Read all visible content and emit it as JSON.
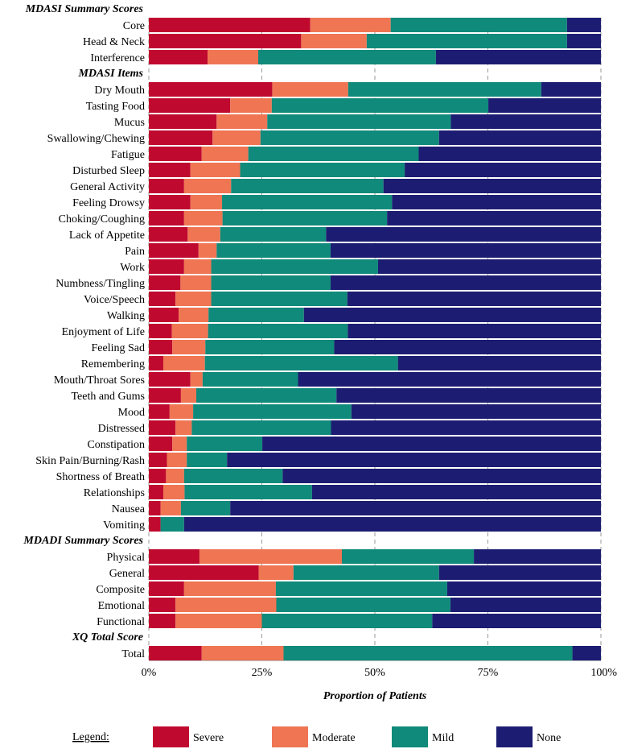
{
  "chart_data": {
    "type": "bar",
    "orientation": "horizontal",
    "stacked": "percent",
    "xlabel": "Proportion of Patients",
    "xlim": [
      0,
      100
    ],
    "xticks": [
      0,
      25,
      50,
      75,
      100
    ],
    "xtick_labels": [
      "0%",
      "25%",
      "50%",
      "75%",
      "100%"
    ],
    "grid": true,
    "series_names": [
      "Severe",
      "Moderate",
      "Mild",
      "None"
    ],
    "colors": {
      "Severe": "#c0092f",
      "Moderate": "#ef7553",
      "Mild": "#108a7a",
      "None": "#1c1d72"
    },
    "groups": [
      {
        "title": "MDASI Summary Scores",
        "rows": [
          {
            "label": "Core",
            "values": [
              35.7,
              17.8,
              39.0,
              7.5
            ]
          },
          {
            "label": "Head & Neck",
            "values": [
              33.7,
              14.5,
              44.3,
              7.5
            ]
          },
          {
            "label": "Interference",
            "values": [
              13.0,
              11.2,
              39.3,
              36.5
            ]
          }
        ]
      },
      {
        "title": "MDASI Items",
        "rows": [
          {
            "label": "Dry Mouth",
            "values": [
              27.3,
              16.8,
              42.7,
              13.2
            ]
          },
          {
            "label": "Tasting Food",
            "values": [
              18.0,
              9.2,
              47.9,
              24.9
            ]
          },
          {
            "label": "Mucus",
            "values": [
              15.0,
              11.2,
              40.6,
              33.2
            ]
          },
          {
            "label": "Swallowing/Chewing",
            "values": [
              14.1,
              10.6,
              39.5,
              35.8
            ]
          },
          {
            "label": "Fatigue",
            "values": [
              11.7,
              10.3,
              37.7,
              40.3
            ]
          },
          {
            "label": "Disturbed Sleep",
            "values": [
              9.2,
              11.0,
              36.4,
              43.4
            ]
          },
          {
            "label": "General Activity",
            "values": [
              7.8,
              10.4,
              33.7,
              48.1
            ]
          },
          {
            "label": "Feeling Drowsy",
            "values": [
              9.2,
              7.0,
              37.6,
              46.2
            ]
          },
          {
            "label": "Choking/Coughing",
            "values": [
              7.8,
              8.5,
              36.4,
              47.3
            ]
          },
          {
            "label": "Lack of Appetite",
            "values": [
              8.6,
              7.2,
              23.4,
              60.8
            ]
          },
          {
            "label": "Pain",
            "values": [
              11.0,
              4.0,
              25.2,
              59.8
            ]
          },
          {
            "label": "Work",
            "values": [
              7.8,
              6.0,
              36.9,
              49.3
            ]
          },
          {
            "label": "Numbness/Tingling",
            "values": [
              7.0,
              6.8,
              26.4,
              59.8
            ]
          },
          {
            "label": "Voice/Speech",
            "values": [
              5.9,
              7.9,
              30.1,
              56.1
            ]
          },
          {
            "label": "Walking",
            "values": [
              6.6,
              6.6,
              21.1,
              65.7
            ]
          },
          {
            "label": "Enjoyment of Life",
            "values": [
              5.1,
              8.0,
              30.9,
              56.0
            ]
          },
          {
            "label": "Feeling Sad",
            "values": [
              5.2,
              7.3,
              28.5,
              59.0
            ]
          },
          {
            "label": "Remembering",
            "values": [
              3.2,
              9.2,
              42.7,
              44.9
            ]
          },
          {
            "label": "Mouth/Throat Sores",
            "values": [
              9.2,
              2.7,
              21.1,
              67.0
            ]
          },
          {
            "label": "Teeth and Gums",
            "values": [
              7.1,
              3.4,
              31.0,
              58.5
            ]
          },
          {
            "label": "Mood",
            "values": [
              4.6,
              5.2,
              35.0,
              55.2
            ]
          },
          {
            "label": "Distressed",
            "values": [
              5.9,
              3.6,
              30.8,
              59.7
            ]
          },
          {
            "label": "Constipation",
            "values": [
              5.2,
              3.2,
              16.7,
              74.9
            ]
          },
          {
            "label": "Skin Pain/Burning/Rash",
            "values": [
              4.0,
              4.4,
              8.9,
              82.7
            ]
          },
          {
            "label": "Shortness of Breath",
            "values": [
              3.8,
              4.0,
              21.8,
              70.4
            ]
          },
          {
            "label": "Relationships",
            "values": [
              3.2,
              4.7,
              28.2,
              63.9
            ]
          },
          {
            "label": "Nausea",
            "values": [
              2.6,
              4.5,
              10.9,
              82.0
            ]
          },
          {
            "label": "Vomiting",
            "values": [
              2.6,
              0.0,
              5.2,
              92.2
            ]
          }
        ]
      },
      {
        "title": "MDADI Summary Scores",
        "rows": [
          {
            "label": "Physical",
            "values": [
              11.2,
              31.5,
              29.2,
              28.1
            ]
          },
          {
            "label": "General",
            "values": [
              24.3,
              7.7,
              32.2,
              35.8
            ]
          },
          {
            "label": "Composite",
            "values": [
              7.8,
              20.3,
              37.9,
              34.0
            ]
          },
          {
            "label": "Emotional",
            "values": [
              5.9,
              22.3,
              38.5,
              33.3
            ]
          },
          {
            "label": "Functional",
            "values": [
              5.9,
              19.1,
              37.7,
              37.3
            ]
          }
        ]
      },
      {
        "title": "XQ Total Score",
        "rows": [
          {
            "label": "Total",
            "values": [
              11.7,
              18.1,
              63.9,
              6.3
            ]
          }
        ]
      }
    ],
    "legend": {
      "title": "Legend:",
      "position": "bottom",
      "entries": [
        "Severe",
        "Moderate",
        "Mild",
        "None"
      ]
    }
  }
}
